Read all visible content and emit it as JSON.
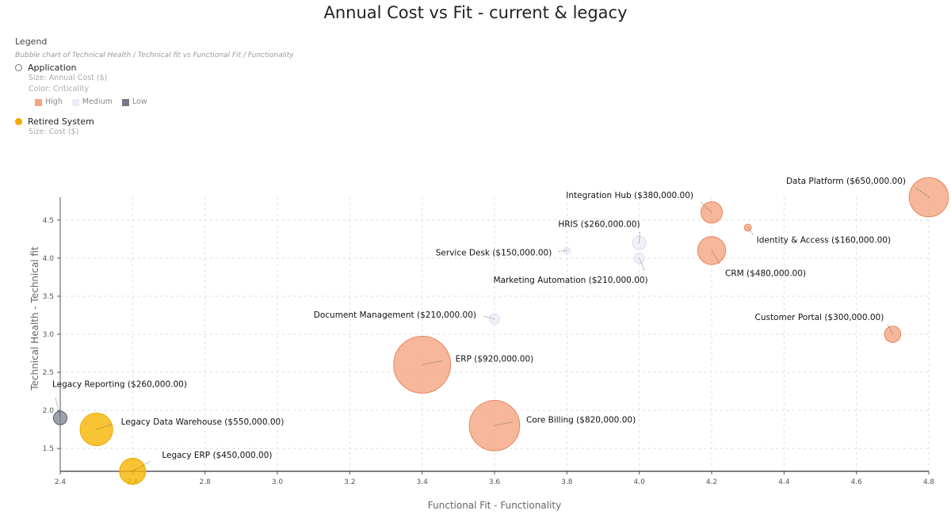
{
  "chart_data": {
    "type": "scatter",
    "subtype": "bubble",
    "title": "Annual Cost vs Fit - current & legacy",
    "xlabel": "Functional Fit - Functionality",
    "ylabel": "Technical Health - Technical fit",
    "xlim": [
      2.4,
      4.8
    ],
    "ylim": [
      1.2,
      4.8
    ],
    "xticks": [
      "2.4",
      "2.6",
      "2.8",
      "3.0",
      "3.2",
      "3.4",
      "3.6",
      "3.8",
      "4.0",
      "4.2",
      "4.4",
      "4.6",
      "4.8"
    ],
    "yticks": [
      "1.5",
      "2.0",
      "2.5",
      "3.0",
      "3.5",
      "4.0",
      "4.5"
    ],
    "grid": true,
    "legend": {
      "heading": "Legend",
      "description": "Bubble chart of Technical Health / Technical fit vs Functional Fit / Functionality",
      "placement": "top-left",
      "application": {
        "label": "Application",
        "size_note": "Size: Annual Cost ($)",
        "color_note": "Color: Criticality",
        "levels": [
          {
            "label": "High",
            "color": "#f4a582"
          },
          {
            "label": "Medium",
            "color": "#ececf8"
          },
          {
            "label": "Low",
            "color": "#757a87"
          }
        ]
      },
      "retired": {
        "label": "Retired System",
        "size_note": "Size: Cost ($)",
        "color": "#f7b500"
      }
    },
    "points": [
      {
        "name": "Data Platform",
        "label": "Data Platform ($650,000.00)",
        "x": 4.8,
        "y": 4.8,
        "cost": 650000,
        "category": "High"
      },
      {
        "name": "Integration Hub",
        "label": "Integration Hub ($380,000.00)",
        "x": 4.2,
        "y": 4.6,
        "cost": 380000,
        "category": "High"
      },
      {
        "name": "HRIS",
        "label": "HRIS ($260,000.00)",
        "x": 4.0,
        "y": 4.2,
        "cost": 260000,
        "category": "Medium"
      },
      {
        "name": "Identity & Access",
        "label": "Identity & Access ($160,000.00)",
        "x": 4.3,
        "y": 4.4,
        "cost": 160000,
        "category": "High"
      },
      {
        "name": "Service Desk",
        "label": "Service Desk ($150,000.00)",
        "x": 3.8,
        "y": 4.1,
        "cost": 150000,
        "category": "Medium"
      },
      {
        "name": "CRM",
        "label": "CRM ($480,000.00)",
        "x": 4.2,
        "y": 4.1,
        "cost": 480000,
        "category": "High"
      },
      {
        "name": "Marketing Automation",
        "label": "Marketing Automation ($210,000.00)",
        "x": 4.0,
        "y": 4.0,
        "cost": 210000,
        "category": "Medium"
      },
      {
        "name": "Document Management",
        "label": "Document Management ($210,000.00)",
        "x": 3.6,
        "y": 3.2,
        "cost": 210000,
        "category": "Medium"
      },
      {
        "name": "Customer Portal",
        "label": "Customer Portal ($300,000.00)",
        "x": 4.7,
        "y": 3.0,
        "cost": 300000,
        "category": "High"
      },
      {
        "name": "ERP",
        "label": "ERP ($920,000.00)",
        "x": 3.4,
        "y": 2.6,
        "cost": 920000,
        "category": "High"
      },
      {
        "name": "Core Billing",
        "label": "Core Billing ($820,000.00)",
        "x": 3.6,
        "y": 1.8,
        "cost": 820000,
        "category": "High"
      },
      {
        "name": "Legacy Reporting",
        "label": "Legacy Reporting ($260,000.00)",
        "x": 2.4,
        "y": 1.9,
        "cost": 260000,
        "category": "Low"
      },
      {
        "name": "Legacy Data Warehouse",
        "label": "Legacy Data Warehouse ($550,000.00)",
        "x": 2.5,
        "y": 1.75,
        "cost": 550000,
        "category": "Retired"
      },
      {
        "name": "Legacy ERP",
        "label": "Legacy ERP ($450,000.00)",
        "x": 2.6,
        "y": 1.2,
        "cost": 450000,
        "category": "Retired"
      }
    ]
  }
}
